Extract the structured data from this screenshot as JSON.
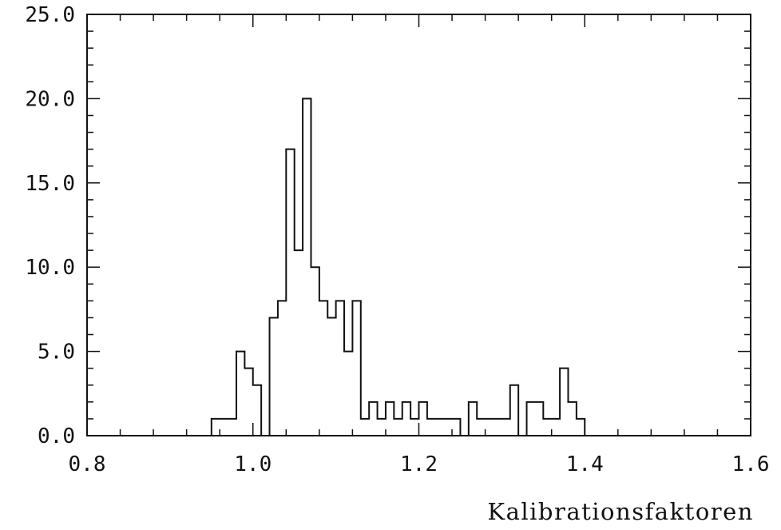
{
  "chart_data": {
    "type": "histogram",
    "title": "",
    "xlabel": "Kalibrationsfaktoren",
    "ylabel": "",
    "xlim": [
      0.8,
      1.6
    ],
    "ylim": [
      0,
      25
    ],
    "grid": false,
    "x_tick_labels": [
      "0.8",
      "1.0",
      "1.2",
      "1.4",
      "1.6"
    ],
    "y_tick_labels": [
      "0.0",
      "5.0",
      "10.0",
      "15.0",
      "20.0",
      "25.0"
    ],
    "bin_width": 0.01,
    "bin_start": 0.95,
    "counts": [
      1,
      1,
      1,
      5,
      4,
      3,
      0,
      7,
      8,
      17,
      11,
      20,
      10,
      8,
      7,
      8,
      5,
      8,
      1,
      2,
      1,
      2,
      1,
      2,
      1,
      2,
      1,
      1,
      1,
      1,
      0,
      2,
      1,
      1,
      1,
      1,
      3,
      0,
      2,
      2,
      1,
      1,
      4,
      2,
      1
    ]
  }
}
